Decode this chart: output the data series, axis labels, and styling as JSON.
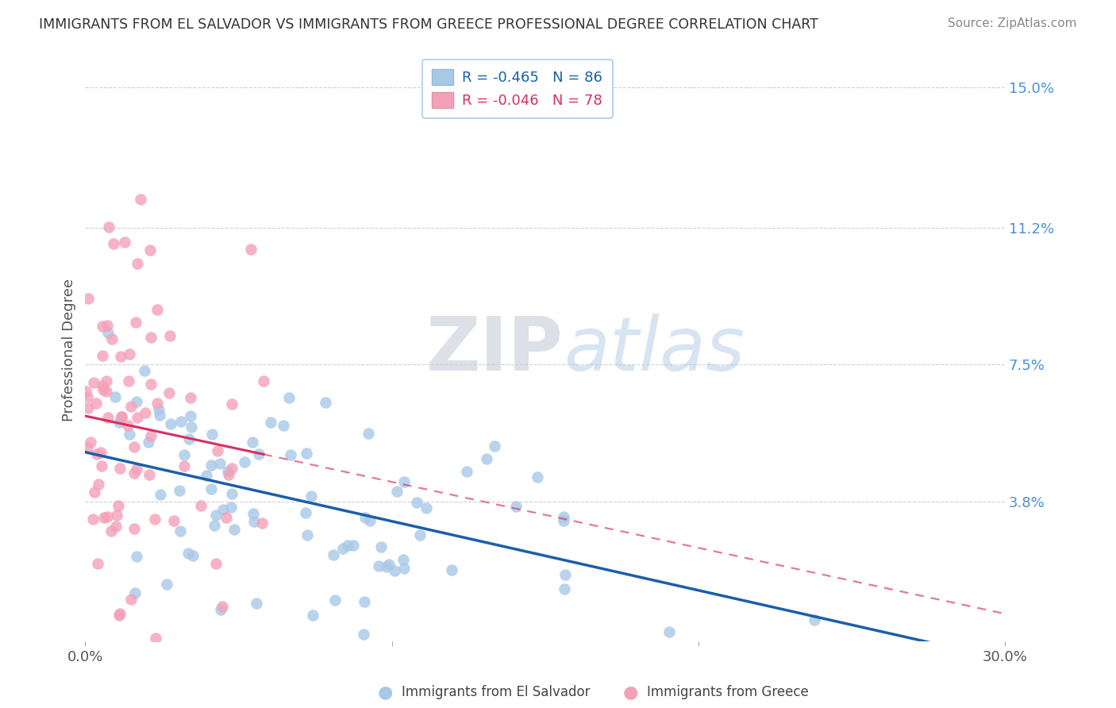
{
  "title": "IMMIGRANTS FROM EL SALVADOR VS IMMIGRANTS FROM GREECE PROFESSIONAL DEGREE CORRELATION CHART",
  "source": "Source: ZipAtlas.com",
  "xlabel": "",
  "ylabel": "Professional Degree",
  "xlim": [
    0.0,
    0.3
  ],
  "ylim": [
    0.0,
    0.158
  ],
  "ytick_vals": [
    0.038,
    0.075,
    0.112,
    0.15
  ],
  "ytick_labels": [
    "3.8%",
    "7.5%",
    "11.2%",
    "15.0%"
  ],
  "xtick_vals": [
    0.0,
    0.1,
    0.2,
    0.3
  ],
  "xtick_labels": [
    "0.0%",
    "",
    "",
    "30.0%"
  ],
  "series1_name": "Immigrants from El Salvador",
  "series1_color": "#a8c8e8",
  "series1_R": -0.465,
  "series1_N": 86,
  "series1_line_color": "#1a5fa8",
  "series2_name": "Immigrants from Greece",
  "series2_color": "#f4a0b8",
  "series2_R": -0.046,
  "series2_N": 78,
  "series2_line_color": "#d63060",
  "watermark_zip": "ZIP",
  "watermark_atlas": "atlas",
  "background_color": "#ffffff",
  "grid_color": "#cccccc",
  "title_color": "#333333",
  "right_axis_color": "#4a90d9",
  "seed1": 42,
  "seed2": 77
}
